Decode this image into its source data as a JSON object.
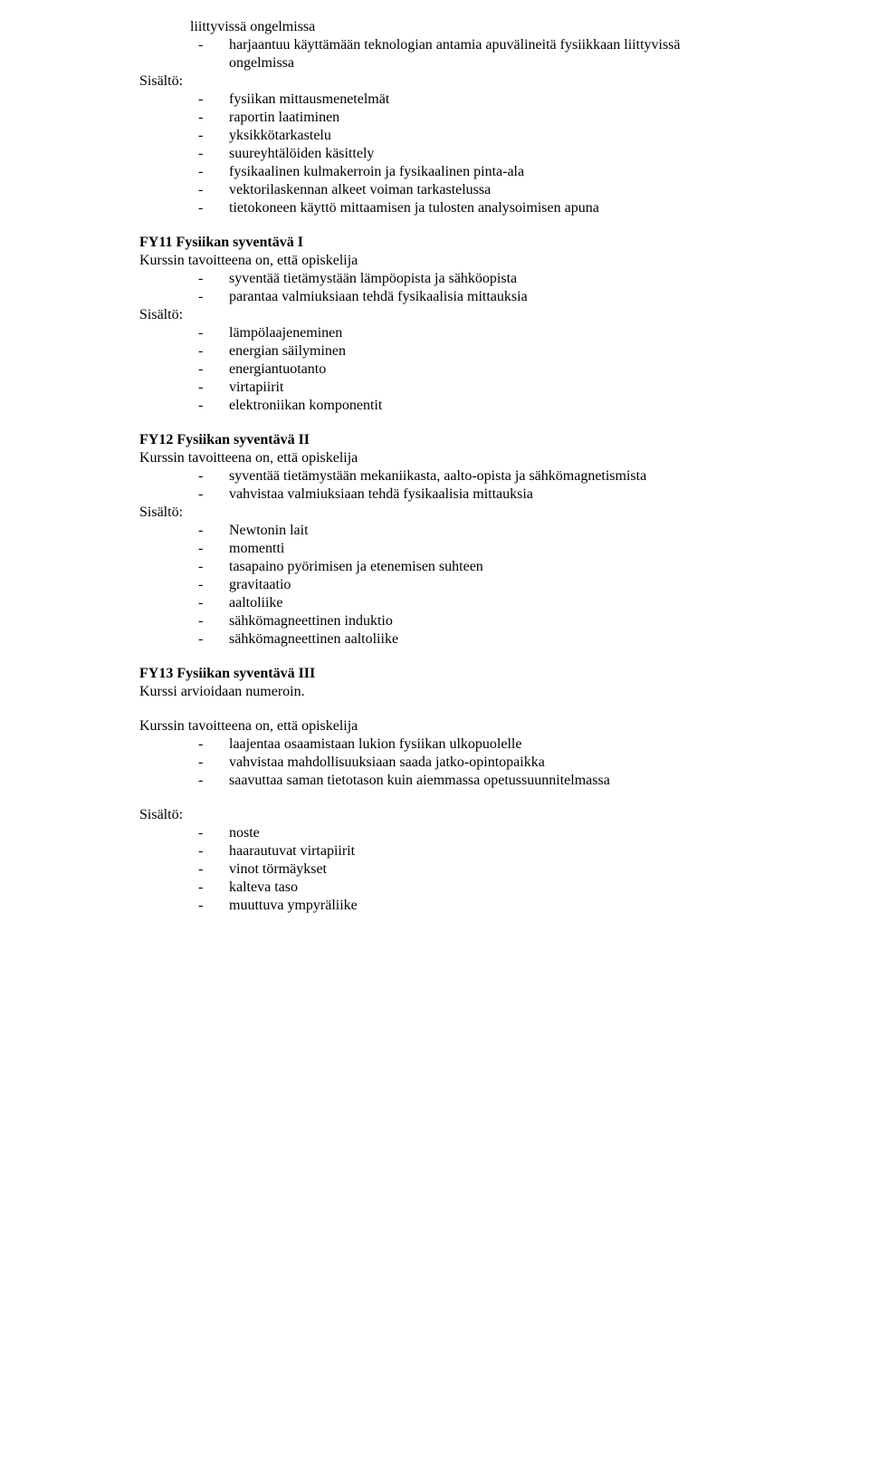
{
  "s0": {
    "bullets_a": [
      "liittyvissä ongelmissa",
      "harjaantuu käyttämään teknologian antamia apuvälineitä fysiikkaan liittyvissä ongelmissa"
    ],
    "sisalto": "Sisältö:",
    "bullets_b": [
      "fysiikan mittausmenetelmät",
      "raportin laatiminen",
      "yksikkötarkastelu",
      "suureyhtälöiden käsittely",
      "fysikaalinen kulmakerroin ja fysikaalinen pinta-ala",
      "vektorilaskennan alkeet voiman tarkastelussa",
      "tietokoneen käyttö mittaamisen ja tulosten analysoimisen apuna"
    ]
  },
  "s1": {
    "heading": "FY11 Fysiikan syventävä I",
    "intro": "Kurssin tavoitteena on, että opiskelija",
    "bullets_a": [
      "syventää tietämystään lämpöopista ja sähköopista",
      "parantaa valmiuksiaan tehdä fysikaalisia mittauksia"
    ],
    "sisalto": "Sisältö:",
    "bullets_b": [
      "lämpölaajeneminen",
      "energian säilyminen",
      "energiantuotanto",
      "virtapiirit",
      "elektroniikan komponentit"
    ]
  },
  "s2": {
    "heading": "FY12 Fysiikan syventävä II",
    "intro": "Kurssin tavoitteena on, että opiskelija",
    "bullets_a": [
      "syventää tietämystään mekaniikasta, aalto-opista ja sähkömagnetismista",
      "vahvistaa valmiuksiaan tehdä fysikaalisia mittauksia"
    ],
    "sisalto": "Sisältö:",
    "bullets_b": [
      "Newtonin lait",
      "momentti",
      "tasapaino pyörimisen ja etenemisen suhteen",
      "gravitaatio",
      "aaltoliike",
      "sähkömagneettinen induktio",
      "sähkömagneettinen aaltoliike"
    ]
  },
  "s3": {
    "heading": "FY13 Fysiikan syventävä III",
    "note": "Kurssi arvioidaan numeroin.",
    "intro": "Kurssin tavoitteena on, että opiskelija",
    "bullets_a": [
      "laajentaa osaamistaan lukion fysiikan ulkopuolelle",
      "vahvistaa mahdollisuuksiaan saada jatko-opintopaikka",
      "saavuttaa saman tietotason kuin aiemmassa opetussuunnitelmassa"
    ],
    "sisalto": "Sisältö:",
    "bullets_b": [
      "noste",
      "haarautuvat virtapiirit",
      "vinot törmäykset",
      "kalteva taso",
      "muuttuva ympyräliike"
    ]
  }
}
